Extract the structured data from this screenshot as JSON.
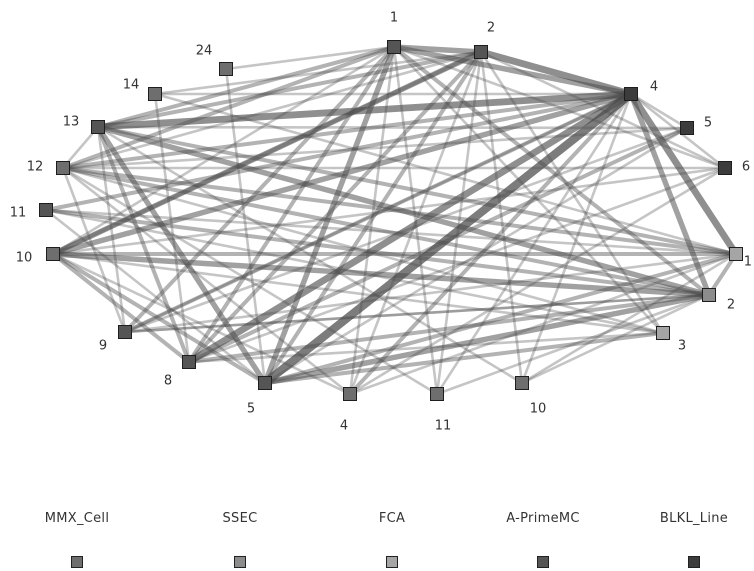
{
  "nodes": [
    {
      "id": "n1",
      "label": "1",
      "group": "A-PrimeMC"
    },
    {
      "id": "n2",
      "label": "2",
      "group": "A-PrimeMC"
    },
    {
      "id": "n4",
      "label": "4",
      "group": "BLKL_Line"
    },
    {
      "id": "n5",
      "label": "5",
      "group": "BLKL_Line"
    },
    {
      "id": "n6",
      "label": "6",
      "group": "BLKL_Line"
    },
    {
      "id": "c1",
      "label": "1",
      "group": "FCA"
    },
    {
      "id": "c2",
      "label": "2",
      "group": "SSEC"
    },
    {
      "id": "c3",
      "label": "3",
      "group": "FCA"
    },
    {
      "id": "b10",
      "label": "10",
      "group": "MMX_Cell"
    },
    {
      "id": "b11",
      "label": "11",
      "group": "MMX_Cell"
    },
    {
      "id": "b4",
      "label": "4",
      "group": "MMX_Cell"
    },
    {
      "id": "b5",
      "label": "5",
      "group": "A-PrimeMC"
    },
    {
      "id": "b8",
      "label": "8",
      "group": "A-PrimeMC"
    },
    {
      "id": "b9",
      "label": "9",
      "group": "A-PrimeMC"
    },
    {
      "id": "l10",
      "label": "10",
      "group": "MMX_Cell"
    },
    {
      "id": "l11",
      "label": "11",
      "group": "A-PrimeMC"
    },
    {
      "id": "l12",
      "label": "12",
      "group": "MMX_Cell"
    },
    {
      "id": "l13",
      "label": "13",
      "group": "A-PrimeMC"
    },
    {
      "id": "l14",
      "label": "14",
      "group": "MMX_Cell"
    },
    {
      "id": "l24",
      "label": "24",
      "group": "MMX_Cell"
    }
  ],
  "edges": [
    [
      "n1",
      "n2",
      3
    ],
    [
      "n1",
      "n4",
      3
    ],
    [
      "n2",
      "n4",
      4
    ],
    [
      "n4",
      "c1",
      4
    ],
    [
      "n4",
      "c2",
      3
    ],
    [
      "n4",
      "b5",
      5
    ],
    [
      "n4",
      "b8",
      4
    ],
    [
      "n4",
      "l13",
      4
    ],
    [
      "n4",
      "l10",
      3
    ],
    [
      "n1",
      "b5",
      3
    ],
    [
      "n1",
      "b8",
      2
    ],
    [
      "n1",
      "l13",
      2
    ],
    [
      "n1",
      "l12",
      2
    ],
    [
      "n2",
      "l13",
      2
    ],
    [
      "n2",
      "b5",
      2
    ],
    [
      "n2",
      "b8",
      2
    ],
    [
      "l13",
      "b5",
      3
    ],
    [
      "l13",
      "b8",
      2
    ],
    [
      "l13",
      "c2",
      3
    ],
    [
      "l13",
      "c1",
      2
    ],
    [
      "l12",
      "c2",
      2
    ],
    [
      "l12",
      "c1",
      2
    ],
    [
      "l10",
      "c2",
      3
    ],
    [
      "l10",
      "c1",
      2
    ],
    [
      "l10",
      "b5",
      2
    ],
    [
      "l10",
      "n2",
      3
    ],
    [
      "l11",
      "n4",
      2
    ],
    [
      "l11",
      "c2",
      2
    ],
    [
      "b8",
      "n5",
      2
    ],
    [
      "b8",
      "c2",
      2
    ],
    [
      "b5",
      "c1",
      2
    ],
    [
      "b5",
      "c2",
      3
    ],
    [
      "b5",
      "c3",
      2
    ],
    [
      "b9",
      "n1",
      2
    ],
    [
      "b9",
      "n4",
      2
    ],
    [
      "l24",
      "n1",
      1
    ],
    [
      "l24",
      "b5",
      1
    ],
    [
      "l14",
      "n2",
      1
    ],
    [
      "l14",
      "c1",
      1
    ],
    [
      "l14",
      "b8",
      1
    ],
    [
      "n6",
      "l10",
      1
    ],
    [
      "n6",
      "b4",
      1
    ],
    [
      "n5",
      "l12",
      1
    ],
    [
      "n5",
      "b9",
      1
    ],
    [
      "n4",
      "b4",
      2
    ],
    [
      "n4",
      "b11",
      1
    ],
    [
      "n4",
      "b10",
      1
    ],
    [
      "n1",
      "b4",
      1
    ],
    [
      "n1",
      "b11",
      1
    ],
    [
      "n2",
      "b10",
      1
    ],
    [
      "n2",
      "c3",
      1
    ],
    [
      "n2",
      "n6",
      1
    ],
    [
      "c3",
      "l12",
      1
    ],
    [
      "c3",
      "b8",
      1
    ],
    [
      "c3",
      "l11",
      1
    ],
    [
      "b10",
      "l13",
      1
    ],
    [
      "b11",
      "l12",
      1
    ],
    [
      "b4",
      "l10",
      1
    ],
    [
      "b4",
      "c1",
      1
    ],
    [
      "b11",
      "c2",
      1
    ],
    [
      "b10",
      "c2",
      1
    ],
    [
      "l13",
      "n5",
      1
    ],
    [
      "l12",
      "n6",
      1
    ],
    [
      "n1",
      "l10",
      1
    ],
    [
      "n1",
      "c3",
      1
    ],
    [
      "n1",
      "c2",
      2
    ],
    [
      "b9",
      "c1",
      1
    ],
    [
      "b9",
      "c2",
      1
    ],
    [
      "l10",
      "b8",
      2
    ],
    [
      "l10",
      "c3",
      1
    ],
    [
      "l11",
      "c1",
      1
    ],
    [
      "b5",
      "n5",
      1
    ],
    [
      "b8",
      "n6",
      1
    ],
    [
      "l12",
      "b9",
      1
    ],
    [
      "l13",
      "b9",
      1
    ],
    [
      "n4",
      "l12",
      2
    ],
    [
      "n4",
      "l14",
      1
    ],
    [
      "n2",
      "b4",
      1
    ],
    [
      "n2",
      "b11",
      1
    ],
    [
      "c1",
      "b10",
      1
    ],
    [
      "c2",
      "b9",
      1
    ],
    [
      "l11",
      "b5",
      1
    ],
    [
      "l12",
      "b4",
      1
    ],
    [
      "n1",
      "n6",
      1
    ],
    [
      "n2",
      "l12",
      1
    ],
    [
      "n2",
      "l10",
      2
    ],
    [
      "n4",
      "b9",
      1
    ],
    [
      "n4",
      "n5",
      1
    ],
    [
      "n4",
      "n6",
      1
    ],
    [
      "c1",
      "c2",
      2
    ],
    [
      "l13",
      "l12",
      1
    ]
  ],
  "legend": [
    {
      "label": "MMX_Cell",
      "color": "#6e6e6e"
    },
    {
      "label": "SSEC",
      "color": "#8c8c8c"
    },
    {
      "label": "FCA",
      "color": "#a5a5a5"
    },
    {
      "label": "A-PrimeMC",
      "color": "#555555"
    },
    {
      "label": "BLKL_Line",
      "color": "#3c3c3c"
    }
  ],
  "colors": {
    "MMX_Cell": "#6e6e6e",
    "SSEC": "#8c8c8c",
    "FCA": "#a5a5a5",
    "A-PrimeMC": "#555555",
    "BLKL_Line": "#3c3c3c",
    "edge": "#4a4a4a"
  }
}
